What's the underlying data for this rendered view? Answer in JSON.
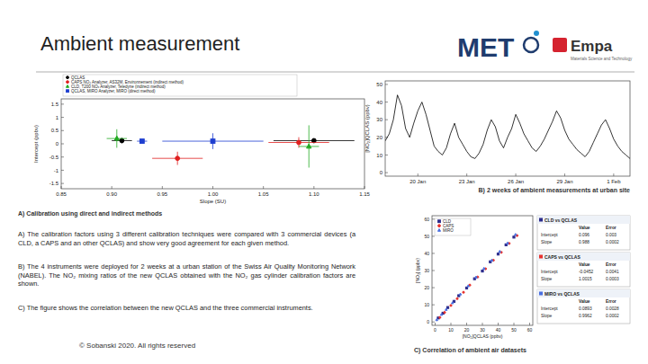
{
  "slide": {
    "title": "Ambient measurement",
    "logos": [
      "MET",
      "Empa"
    ],
    "logo_subtitle": "Materials Science and Technology",
    "paragraphs": [
      "A) The calibration factors using 3 different calibration techniques were compared with 3 commercial devices (a CLD, a CAPS and an other QCLAS) and show very good agreement for each given method.",
      "B) The 4 instruments were deployed for 2 weeks at a urban station of the Swiss Air Quality Monitoring Network (NABEL). The NO₂ mixing ratios of the new QCLAS obtained with the NO₂ gas cylinder calibration factors are shown.",
      "C) The figure shows the correlation between the new QCLAS and the three commercial instruments."
    ],
    "footer": "© Sobanski 2020. All rights reserved"
  },
  "chart_data": [
    {
      "type": "scatter",
      "title": "A) Calibration using direct and indirect methods",
      "x_label": "Slope (SU)",
      "y_label": "Intercept (ppbv)",
      "xlim": [
        0.85,
        1.15
      ],
      "ylim": [
        -1.7,
        1.7
      ],
      "xticks": [
        0.85,
        {
          "value": 0.9,
          "label": "0.90"
        },
        0.95,
        {
          "value": 1,
          "label": "1.00"
        },
        1.05,
        {
          "value": 1.1,
          "label": "1.10"
        },
        1.15
      ],
      "yticks": [
        -1.5,
        -1,
        -0.5,
        0,
        0.5,
        1,
        1.5
      ],
      "grid": false,
      "legend": "top",
      "series": [
        {
          "name": "QCLAS",
          "color": "#000000",
          "marker": "circle",
          "x": [
            0.91,
            1.1
          ],
          "values": [
            0.12,
            0.12
          ],
          "x_err": [
            0.01,
            0.04
          ],
          "y_err": [
            0.1,
            0.05
          ]
        },
        {
          "name": "CAPS NO₂ Analyzer, AS32M, Environnement (indirect method)",
          "color": "#e02020",
          "marker": "circle",
          "x": [
            0.965,
            1.085
          ],
          "values": [
            -0.55,
            0.05
          ],
          "x_err": [
            0.025,
            0.03
          ],
          "y_err": [
            0.25,
            0.2
          ]
        },
        {
          "name": "CLD, T200 NOₓ Analyzer, Teledyne (indirect method)",
          "color": "#22aa22",
          "marker": "triangle",
          "x": [
            0.905,
            1.095
          ],
          "values": [
            0.2,
            -0.1
          ],
          "x_err": [
            0.01,
            0.01
          ],
          "y_err": [
            0.35,
            0.8
          ]
        },
        {
          "name": "QCLAS, MIRO Analyzer, MIRO (direct method)",
          "color": "#1f3fd0",
          "marker": "square",
          "x": [
            0.93,
            1.0
          ],
          "values": [
            0.1,
            0.1
          ],
          "x_err": [
            0.005,
            0.05
          ],
          "y_err": [
            0.05,
            0.3
          ]
        }
      ]
    },
    {
      "type": "line",
      "title": "B) 2 weeks of ambient measurements at urban site",
      "y_label": "[NO₂]QCLAS (ppbv)",
      "xlim": [
        0,
        15
      ],
      "ylim": [
        -2,
        52
      ],
      "xticks": [
        {
          "value": 2,
          "label": "20 Jan"
        },
        {
          "value": 5,
          "label": "23 Jan"
        },
        {
          "value": 8,
          "label": "26 Jan"
        },
        {
          "value": 11,
          "label": "29 Jan"
        },
        {
          "value": 14,
          "label": "1 Feb"
        }
      ],
      "yticks": [
        0,
        10,
        20,
        30,
        40,
        50
      ],
      "grid": false,
      "color": "#000000",
      "x": [
        0,
        0.25,
        0.5,
        0.75,
        1,
        1.25,
        1.5,
        1.75,
        2,
        2.25,
        2.5,
        2.75,
        3,
        3.25,
        3.5,
        3.75,
        4,
        4.25,
        4.5,
        4.75,
        5,
        5.25,
        5.5,
        5.75,
        6,
        6.25,
        6.5,
        6.75,
        7,
        7.25,
        7.5,
        7.75,
        8,
        8.25,
        8.5,
        8.75,
        9,
        9.25,
        9.5,
        9.75,
        10,
        10.25,
        10.5,
        10.75,
        11,
        11.25,
        11.5,
        11.75,
        12,
        12.25,
        12.5,
        12.75,
        13,
        13.25,
        13.5,
        13.75,
        14,
        14.25,
        14.5,
        14.75,
        15
      ],
      "values": [
        18,
        22,
        30,
        44,
        38,
        25,
        20,
        28,
        35,
        40,
        33,
        24,
        15,
        12,
        10,
        14,
        22,
        28,
        20,
        16,
        12,
        9,
        8,
        11,
        16,
        24,
        30,
        26,
        18,
        14,
        20,
        25,
        33,
        28,
        22,
        18,
        14,
        12,
        15,
        19,
        24,
        29,
        35,
        31,
        24,
        19,
        16,
        13,
        11,
        9,
        12,
        17,
        22,
        27,
        30,
        25,
        19,
        15,
        12,
        10,
        8
      ]
    },
    {
      "type": "scatter",
      "title": "C) Correlation of ambient air datasets",
      "x_label": "[NO₂]QCLAS (ppbv)",
      "y_label": "[NO₂] (ppbv)",
      "xlim": [
        -2,
        62
      ],
      "ylim": [
        -2,
        62
      ],
      "xticks": [
        0,
        10,
        20,
        30,
        40,
        50,
        60
      ],
      "yticks": [
        0,
        10,
        20,
        30,
        40,
        50,
        60
      ],
      "grid": false,
      "legend": "top-left",
      "fit_columns": [
        "Value",
        "Error"
      ],
      "series": [
        {
          "name": "CLD",
          "color": "#2c2c8c",
          "marker": "square",
          "x": [
            2,
            5,
            8,
            12,
            15,
            20,
            25,
            30,
            35,
            40,
            45,
            50
          ],
          "values": [
            2.3,
            5.1,
            8.4,
            12,
            15.3,
            19.8,
            25.2,
            29.7,
            35.1,
            39.6,
            45,
            49.5
          ],
          "fit": {
            "title": "CLD vs QCLAS",
            "rows": [
              {
                "label": "Intercept",
                "value": 0.096,
                "error": 0.003
              },
              {
                "label": "Slope",
                "value": 0.988,
                "error": 0.0002
              }
            ]
          }
        },
        {
          "name": "CAPS",
          "color": "#e8322e",
          "marker": "circle",
          "x": [
            3,
            6,
            10,
            14,
            18,
            22,
            27,
            32,
            37,
            42,
            47,
            52
          ],
          "values": [
            2.6,
            5.5,
            9.6,
            13.6,
            17.3,
            21.5,
            26.2,
            31,
            36,
            40.6,
            45.8,
            50.4
          ],
          "fit": {
            "title": "CAPS vs QCLAS",
            "rows": [
              {
                "label": "Intercept",
                "value": -0.0452,
                "error": 0.0041
              },
              {
                "label": "Slope",
                "value": 1.0015,
                "error": 0.0003
              }
            ]
          }
        },
        {
          "name": "MIRO",
          "color": "#4a6fe0",
          "marker": "triangle",
          "x": [
            1,
            4,
            7,
            11,
            16,
            21,
            26,
            31,
            36,
            41,
            46,
            51
          ],
          "values": [
            1.2,
            4.3,
            7.2,
            11.1,
            16.2,
            21,
            26.1,
            31.2,
            36,
            41.1,
            46,
            51
          ],
          "fit": {
            "title": "MIRO vs QCLAS",
            "rows": [
              {
                "label": "Intercept",
                "value": 0.0893,
                "error": 0.0028
              },
              {
                "label": "Slope",
                "value": 0.9962,
                "error": 0.0002
              }
            ]
          }
        }
      ]
    }
  ]
}
